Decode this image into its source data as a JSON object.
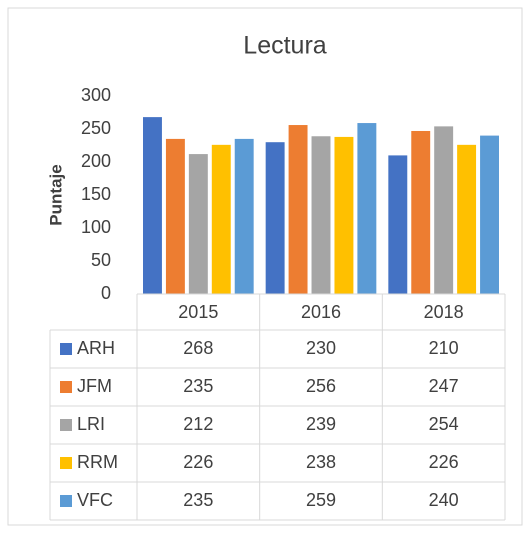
{
  "chart_data": {
    "type": "bar",
    "title": "Lectura",
    "y_label": "Puntaje",
    "categories": [
      "2015",
      "2016",
      "2018"
    ],
    "series": [
      {
        "name": "ARH",
        "color": "#4472c4",
        "values": [
          268,
          230,
          210
        ]
      },
      {
        "name": "JFM",
        "color": "#ed7d31",
        "values": [
          235,
          256,
          247
        ]
      },
      {
        "name": "LRI",
        "color": "#a5a5a5",
        "values": [
          212,
          239,
          254
        ]
      },
      {
        "name": "RRM",
        "color": "#ffc000",
        "values": [
          226,
          238,
          226
        ]
      },
      {
        "name": "VFC",
        "color": "#5b9bd5",
        "values": [
          235,
          259,
          240
        ]
      }
    ],
    "ylim": [
      0,
      300
    ],
    "yticks": [
      0,
      50,
      100,
      150,
      200,
      250,
      300
    ],
    "grid": false,
    "data_table": true
  }
}
